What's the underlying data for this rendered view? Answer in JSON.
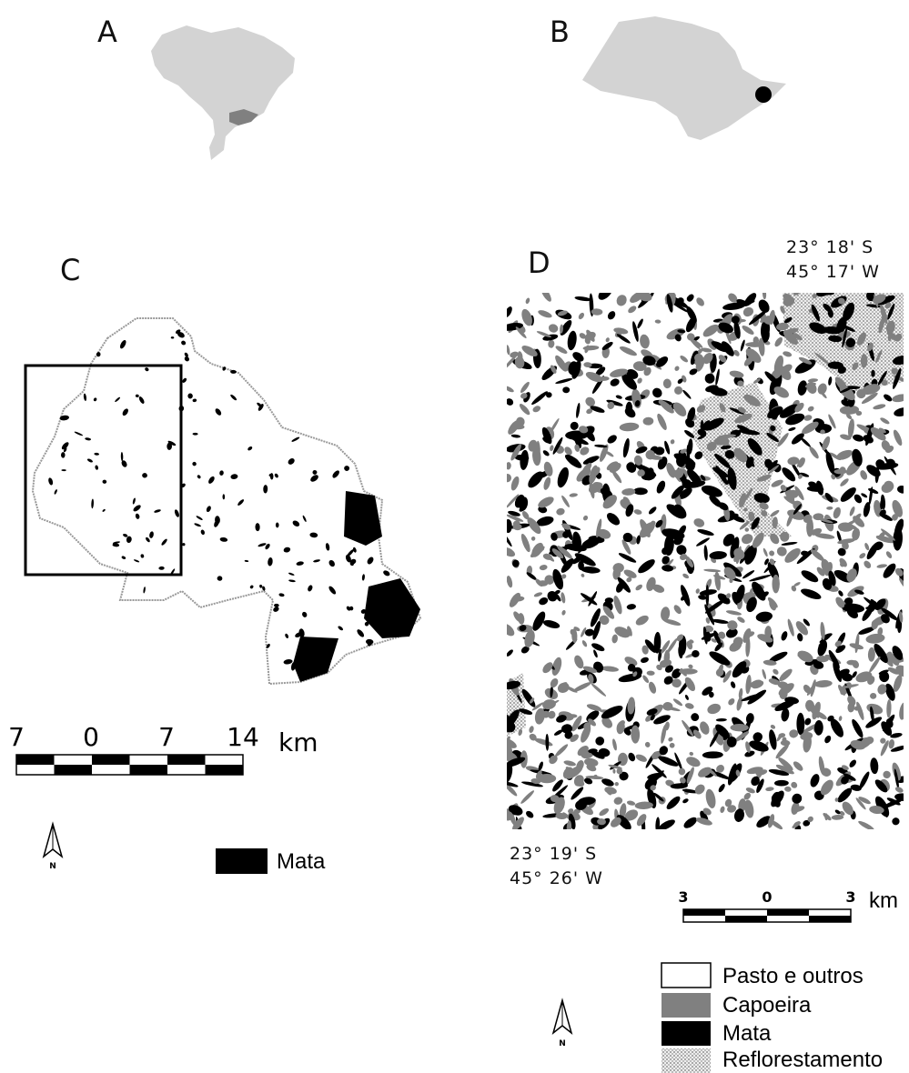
{
  "panels": [
    {
      "label": "A"
    },
    {
      "label": "B"
    },
    {
      "label": "C",
      "scale_bar": {
        "ticks": [
          "7",
          "0",
          "7",
          "14"
        ],
        "unit": "km"
      },
      "north": "N",
      "legend": [
        "Mata"
      ]
    },
    {
      "label": "D",
      "corner_ne": [
        "23° 18' S",
        "45° 17' W"
      ],
      "corner_sw": [
        "23° 19' S",
        "45° 26' W"
      ],
      "scale_bar": {
        "ticks": [
          "3",
          "0",
          "3"
        ],
        "unit": "km"
      },
      "north": "N",
      "legend": [
        "Pasto e outros",
        "Capoeira",
        "Mata",
        "Reflorestamento"
      ]
    }
  ]
}
